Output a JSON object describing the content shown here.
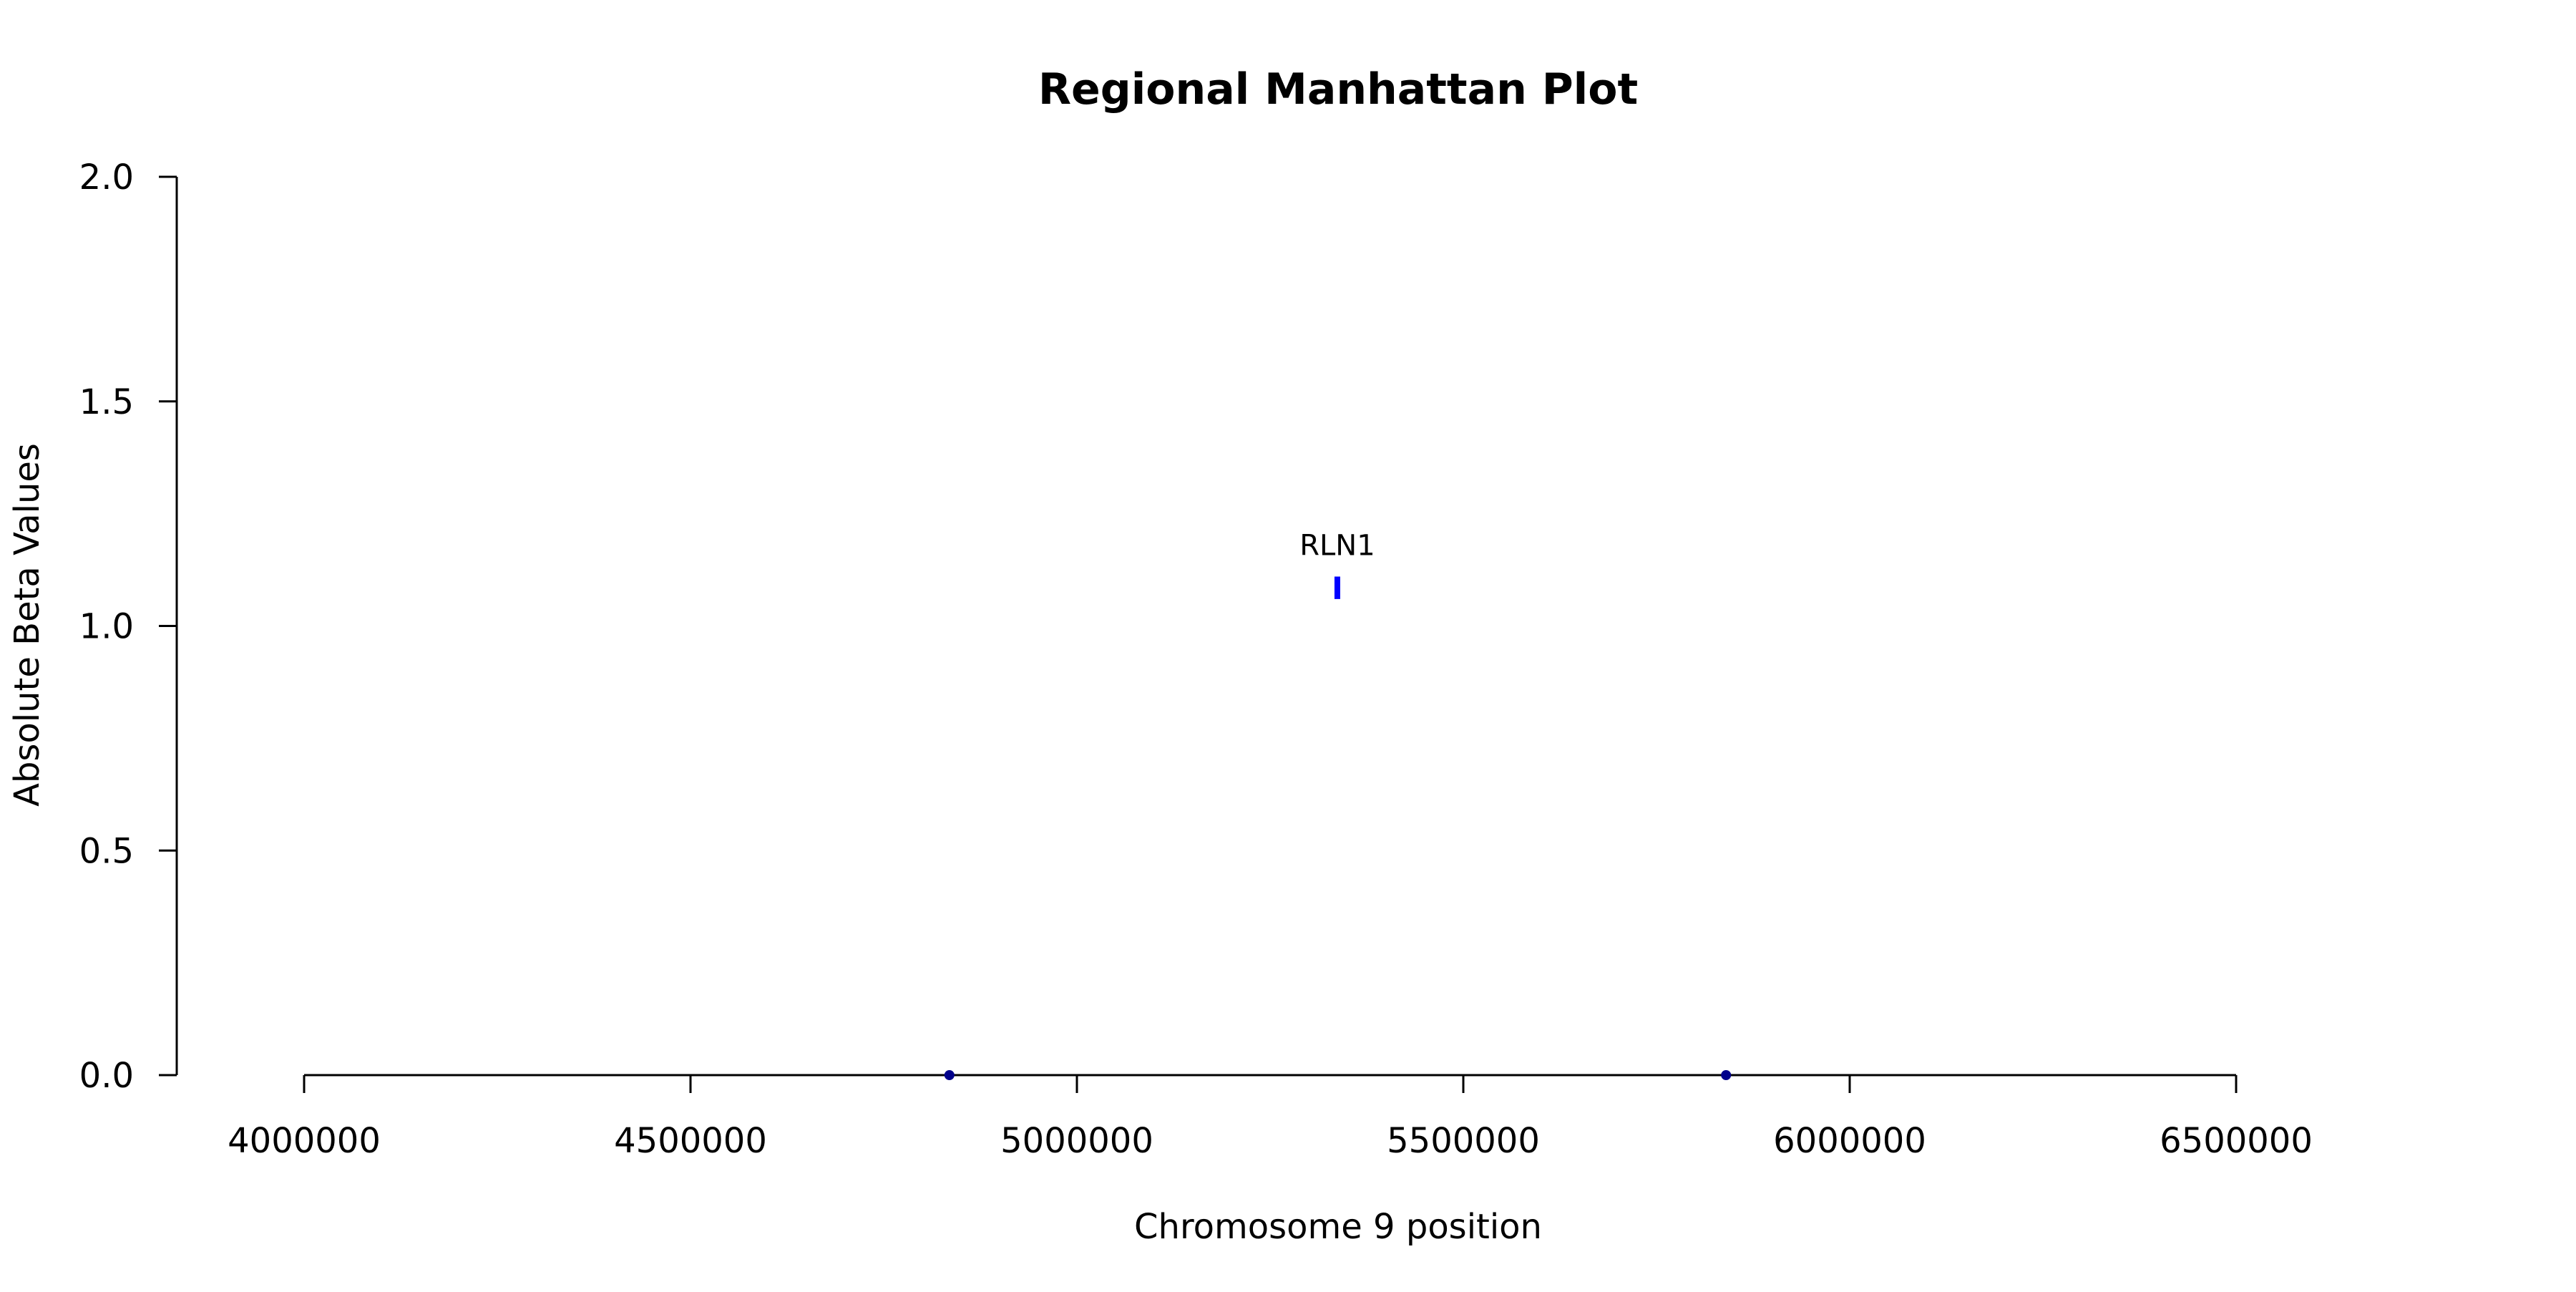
{
  "chart_data": {
    "type": "scatter",
    "title": "Regional Manhattan Plot",
    "xlabel": "Chromosome 9 position",
    "ylabel": "Absolute Beta Values",
    "xlim": [
      4000000,
      6500000
    ],
    "ylim": [
      0,
      2
    ],
    "xticks": [
      4000000,
      4500000,
      5000000,
      5500000,
      6000000,
      6500000
    ],
    "xtick_labels": [
      "4000000",
      "4500000",
      "5000000",
      "5500000",
      "6000000",
      "6500000"
    ],
    "yticks": [
      0,
      0.5,
      1,
      1.5,
      2
    ],
    "ytick_labels": [
      "0.0",
      "0.5",
      "1.0",
      "1.5",
      "2.0"
    ],
    "grid": false,
    "points": [
      {
        "x": 4835000,
        "y": 0.0,
        "color": "#00008b"
      },
      {
        "x": 5840000,
        "y": 0.0,
        "color": "#00008b"
      }
    ],
    "segments": [
      {
        "x": 5337000,
        "y0": 1.06,
        "y1": 1.11,
        "color": "#0000ff"
      }
    ],
    "annotations": [
      {
        "text": "RLN1",
        "x": 5337000,
        "y": 1.18
      }
    ]
  }
}
